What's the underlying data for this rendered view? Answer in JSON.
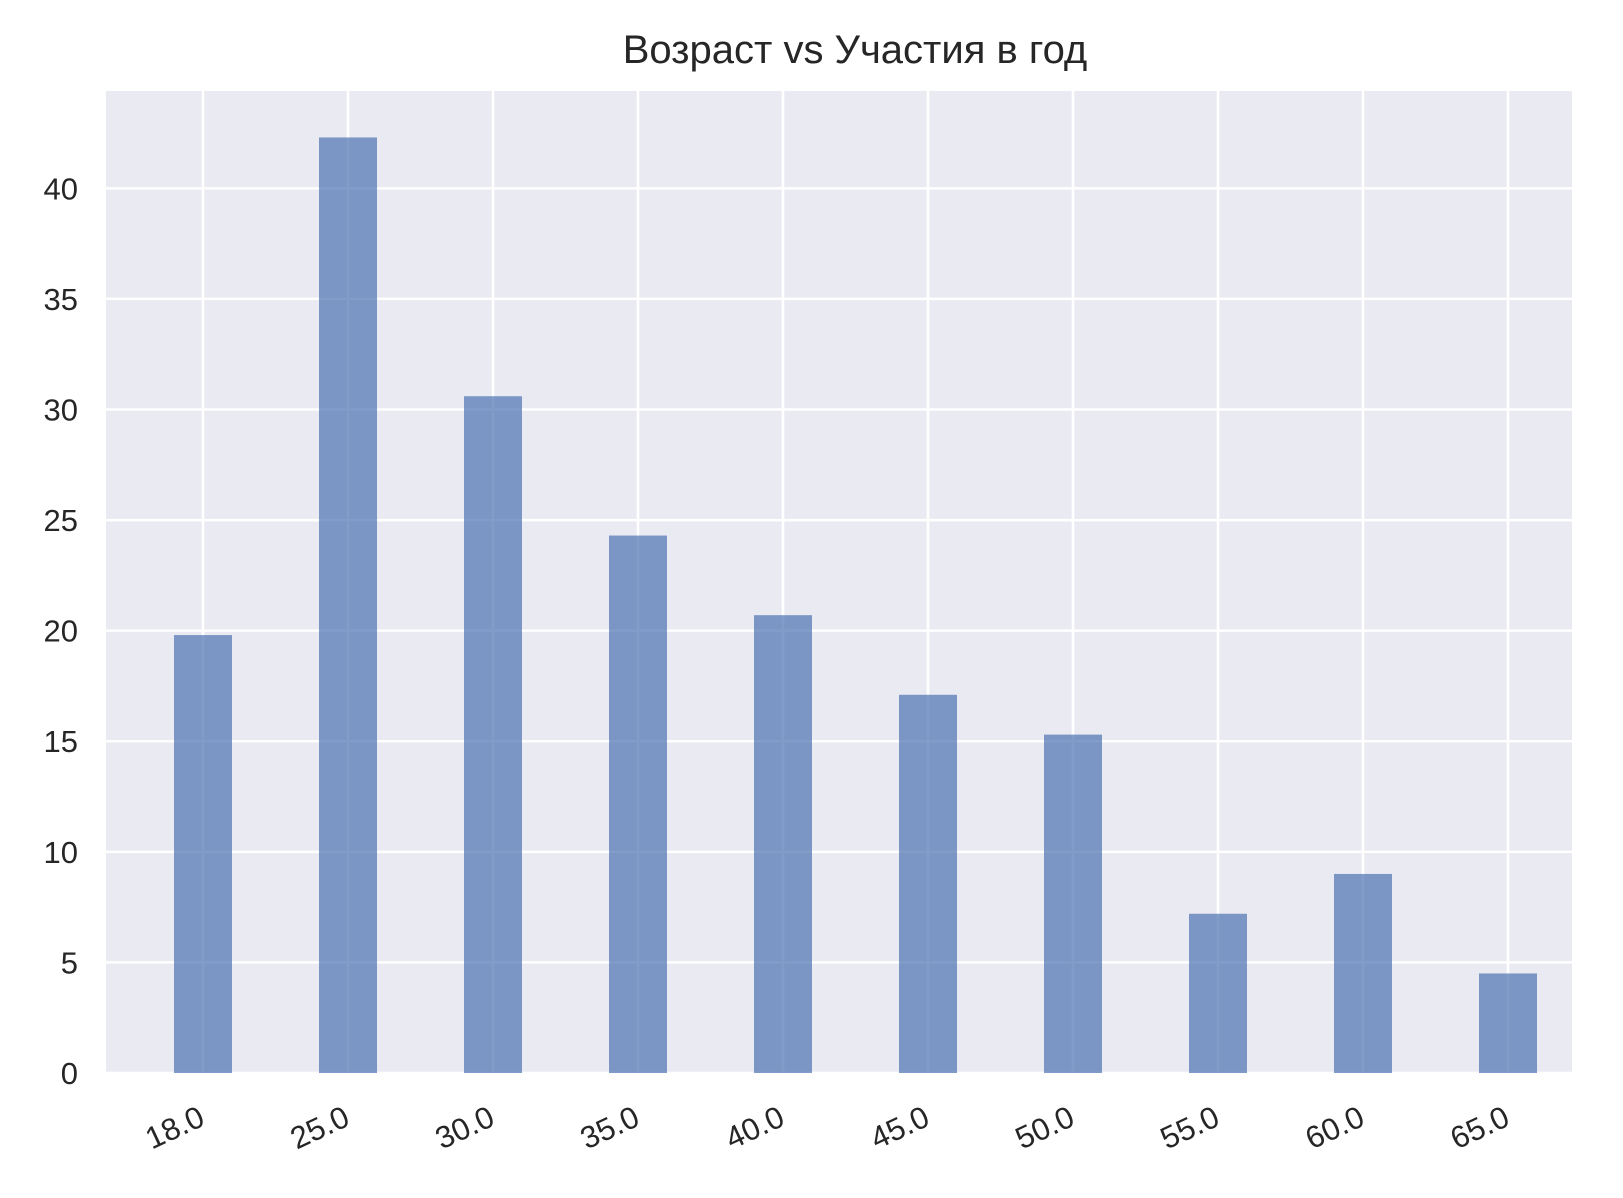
{
  "chart_data": {
    "type": "bar",
    "title": "Возраст vs Участия в год",
    "xlabel": "",
    "ylabel": "",
    "categories": [
      "18.0",
      "25.0",
      "30.0",
      "35.0",
      "40.0",
      "45.0",
      "50.0",
      "55.0",
      "60.0",
      "65.0"
    ],
    "values": [
      19.8,
      42.3,
      30.6,
      24.3,
      20.7,
      17.1,
      15.3,
      7.2,
      9.0,
      4.5
    ],
    "ylim": [
      0,
      44.4
    ],
    "yticks": [
      0,
      5,
      10,
      15,
      20,
      25,
      30,
      35,
      40
    ],
    "grid": true,
    "colors": {
      "bar": "#4c72b0",
      "background": "#eaeaf2",
      "grid": "#ffffff",
      "text": "#262626"
    }
  }
}
